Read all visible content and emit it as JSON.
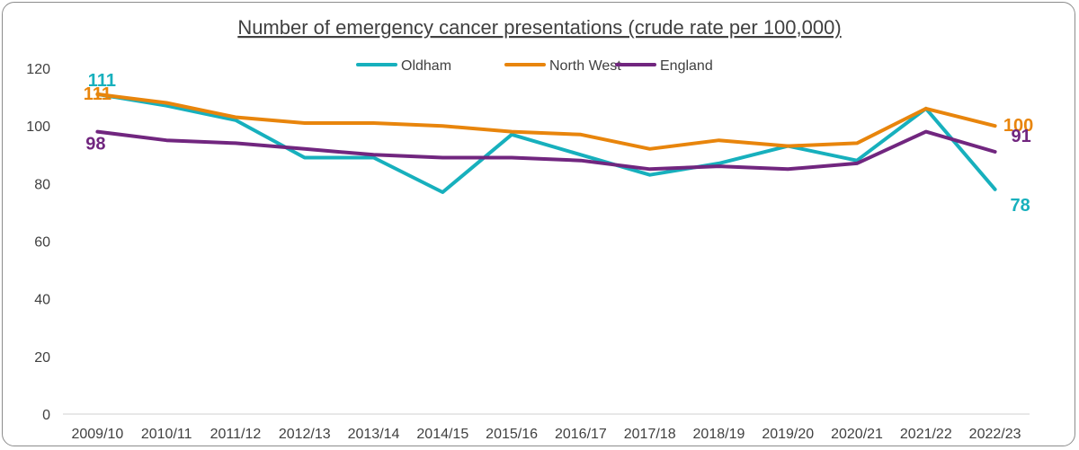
{
  "chart_data": {
    "type": "line",
    "title": "Number of emergency cancer presentations (crude rate per 100,000)",
    "xlabel": "",
    "ylabel": "",
    "categories": [
      "2009/10",
      "2010/11",
      "2011/12",
      "2012/13",
      "2013/14",
      "2014/15",
      "2015/16",
      "2016/17",
      "2017/18",
      "2018/19",
      "2019/20",
      "2020/21",
      "2021/22",
      "2022/23"
    ],
    "ylim": [
      0,
      120
    ],
    "yticks": [
      0,
      20,
      40,
      60,
      80,
      100,
      120
    ],
    "grid": false,
    "legend_position": "top",
    "series": [
      {
        "name": "Oldham",
        "color": "#17b0bd",
        "values": [
          111,
          107,
          102,
          89,
          89,
          77,
          97,
          90,
          83,
          87,
          93,
          88,
          106,
          78
        ]
      },
      {
        "name": "North West",
        "color": "#e8850c",
        "values": [
          111,
          108,
          103,
          101,
          101,
          100,
          98,
          97,
          92,
          95,
          93,
          94,
          106,
          100
        ]
      },
      {
        "name": "England",
        "color": "#71267f",
        "values": [
          98,
          95,
          94,
          92,
          90,
          89,
          89,
          88,
          85,
          86,
          85,
          87,
          98,
          91
        ]
      }
    ],
    "data_labels": [
      {
        "series": "Oldham",
        "position": "first",
        "text": "111"
      },
      {
        "series": "North West",
        "position": "first",
        "text": "111"
      },
      {
        "series": "England",
        "position": "first",
        "text": "98"
      },
      {
        "series": "North West",
        "position": "last",
        "text": "100"
      },
      {
        "series": "England",
        "position": "last",
        "text": "91"
      },
      {
        "series": "Oldham",
        "position": "last",
        "text": "78"
      }
    ]
  }
}
